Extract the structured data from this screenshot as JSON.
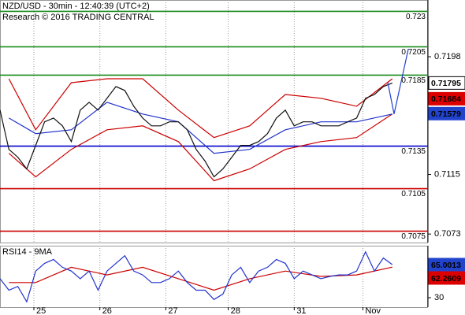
{
  "chart_data": [
    {
      "type": "line",
      "title": "NZD/USD - 30min - 12:40:39 (UTC+2)",
      "subtitle": "Research © 2016 TRADING CENTRAL",
      "xlim": [
        0,
        48
      ],
      "ylim": [
        0.7067,
        0.7238
      ],
      "yticks": [
        0.7198,
        0.7115,
        0.7073
      ],
      "levels": [
        {
          "value": 0.723,
          "color": "#1a8a1a"
        },
        {
          "value": 0.7205,
          "color": "#1a8a1a"
        },
        {
          "value": 0.7185,
          "color": "#1a8a1a"
        },
        {
          "value": 0.7135,
          "color": "#0000cc"
        },
        {
          "value": 0.7105,
          "color": "#cc0000"
        },
        {
          "value": 0.7075,
          "color": "#cc0000"
        }
      ],
      "series": [
        {
          "color": "#cc0000",
          "x": [
            1,
            4,
            8,
            12,
            16,
            20,
            24,
            28,
            32,
            36,
            40,
            44
          ],
          "values": [
            0.71825,
            0.71465,
            0.71797,
            0.71825,
            0.71825,
            0.71604,
            0.7141,
            0.71493,
            0.71714,
            0.71687,
            0.71631,
            0.71825
          ]
        },
        {
          "color": "#cc0000",
          "x": [
            1,
            4,
            8,
            12,
            16,
            20,
            24,
            28,
            32,
            36,
            40,
            44
          ],
          "values": [
            0.71299,
            0.71133,
            0.71327,
            0.71465,
            0.71493,
            0.71382,
            0.71106,
            0.71189,
            0.71327,
            0.71382,
            0.7141,
            0.71576
          ]
        },
        {
          "color": "#2233cc",
          "x": [
            1,
            4,
            8,
            12,
            16,
            20,
            24,
            28,
            32,
            36,
            40,
            44
          ],
          "values": [
            0.71548,
            0.71438,
            0.71465,
            0.71659,
            0.71576,
            0.71521,
            0.71299,
            0.71327,
            0.71465,
            0.71521,
            0.71521,
            0.71576
          ]
        },
        {
          "color": "#111111",
          "x": [
            0,
            1,
            2,
            3,
            4,
            5,
            6,
            7,
            8,
            9,
            10,
            11,
            12,
            13,
            14,
            15,
            16,
            17,
            18,
            19,
            20,
            21,
            22,
            23,
            24,
            25,
            26,
            27,
            28,
            29,
            30,
            31,
            32,
            33,
            34,
            35,
            36,
            37,
            38,
            39,
            40,
            41,
            42,
            43,
            44
          ],
          "values": [
            0.71604,
            0.71327,
            0.71272,
            0.71189,
            0.71355,
            0.71521,
            0.71548,
            0.71493,
            0.71382,
            0.71604,
            0.71659,
            0.71604,
            0.71687,
            0.7177,
            0.71742,
            0.71631,
            0.71548,
            0.71493,
            0.71493,
            0.71521,
            0.71521,
            0.71465,
            0.71327,
            0.71244,
            0.71133,
            0.71189,
            0.71272,
            0.71355,
            0.71355,
            0.71382,
            0.71438,
            0.71548,
            0.71604,
            0.71493,
            0.71521,
            0.71521,
            0.71493,
            0.71493,
            0.71493,
            0.71521,
            0.71548,
            0.71687,
            0.71714,
            0.7177,
            0.71795
          ]
        },
        {
          "color": "#1f3fd0",
          "x": [
            43.5,
            44.2,
            45.8
          ],
          "values": [
            0.71797,
            0.71576,
            0.72035
          ]
        }
      ],
      "markers": [
        {
          "value": 0.71795,
          "color": "#ffffff"
        },
        {
          "value": 0.71684,
          "color": "#dd0000"
        },
        {
          "value": 0.71579,
          "color": "#2244cc"
        }
      ]
    },
    {
      "type": "line",
      "title": "RSI14 - 9MA",
      "xlim": [
        0,
        48
      ],
      "ylim": [
        20,
        85
      ],
      "yticks": [
        30
      ],
      "xticks": [
        {
          "value": 3.8,
          "label": "25"
        },
        {
          "value": 11.2,
          "label": "26"
        },
        {
          "value": 18.6,
          "label": "27"
        },
        {
          "value": 25.6,
          "label": "28"
        },
        {
          "value": 33,
          "label": "31"
        },
        {
          "value": 40.7,
          "label": "Nov"
        }
      ],
      "series": [
        {
          "color": "#cc0000",
          "x": [
            1,
            4,
            8,
            12,
            16,
            20,
            24,
            28,
            32,
            36,
            40,
            44
          ],
          "values": [
            46.0,
            46.0,
            62.2,
            54.1,
            62.2,
            50.1,
            37.9,
            50.1,
            58.2,
            52.5,
            54.1,
            62.3
          ]
        },
        {
          "color": "#2233cc",
          "x": [
            0,
            1,
            2,
            3,
            4,
            5,
            6,
            7,
            8,
            9,
            10,
            11,
            12,
            13,
            14,
            15,
            16,
            17,
            18,
            19,
            20,
            21,
            22,
            23,
            24,
            25,
            26,
            27,
            28,
            29,
            30,
            31,
            32,
            33,
            34,
            35,
            36,
            37,
            38,
            39,
            40,
            41,
            42,
            43,
            44
          ],
          "values": [
            50.1,
            37.9,
            41.9,
            25.7,
            58.2,
            66.3,
            70.4,
            62.2,
            58.2,
            50.1,
            58.2,
            37.9,
            58.2,
            66.3,
            74.4,
            58.2,
            54.1,
            46.0,
            46.0,
            50.1,
            58.2,
            46.0,
            37.9,
            37.9,
            28.1,
            33.8,
            54.1,
            62.2,
            46.0,
            58.2,
            62.2,
            70.4,
            66.3,
            50.1,
            58.2,
            54.1,
            50.1,
            52.5,
            54.1,
            54.1,
            58.2,
            78.5,
            58.2,
            72.0,
            65.0
          ]
        }
      ],
      "markers": [
        {
          "value": 65.0013,
          "color": "#2244cc"
        },
        {
          "value": 62.2609,
          "color": "#dd0000"
        }
      ]
    }
  ]
}
